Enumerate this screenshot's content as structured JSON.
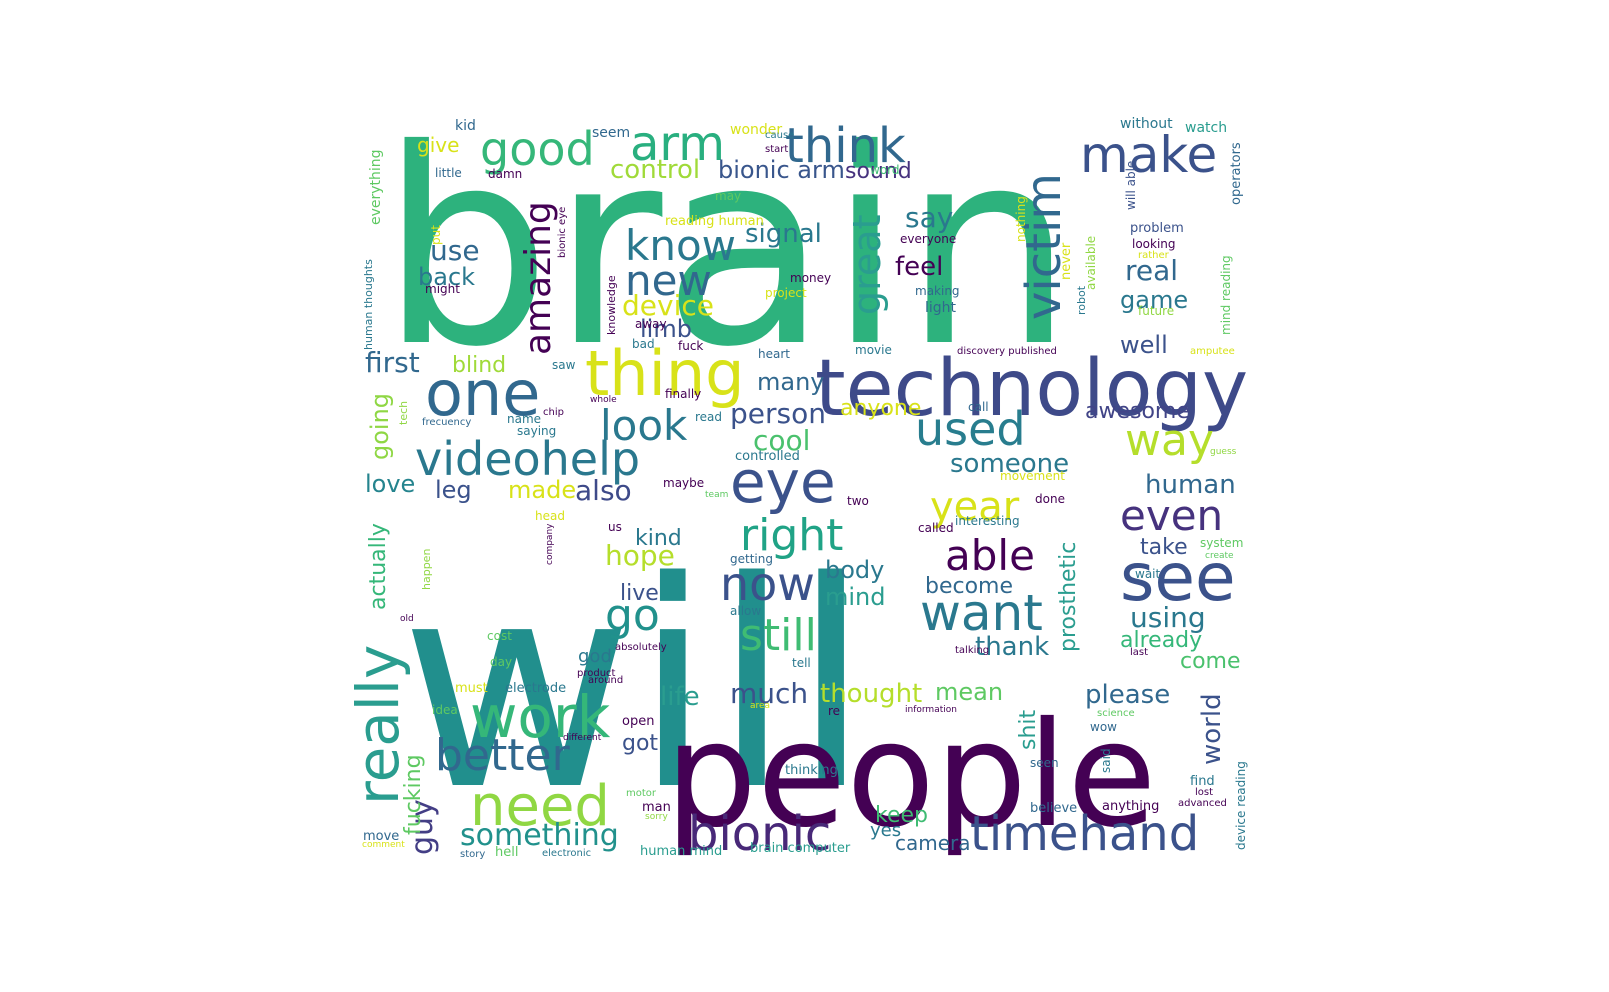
{
  "cloud": {
    "palette": {
      "dark_purple": "#440154",
      "indigo": "#3b528b",
      "blue": "#31688e",
      "teal": "#21918c",
      "green": "#35b779",
      "light_green": "#5ec962",
      "lime": "#90d743",
      "yellow": "#c8e020"
    },
    "words": [
      {
        "text": "brain",
        "color": "#2db27d"
      },
      {
        "text": "will",
        "color": "#218f8d"
      },
      {
        "text": "people",
        "color": "#440154"
      },
      {
        "text": "technology",
        "color": "#3e4a89"
      },
      {
        "text": "one",
        "color": "#31688e"
      },
      {
        "text": "thing",
        "color": "#d8e219"
      },
      {
        "text": "arm",
        "color": "#29af7f"
      },
      {
        "text": "think",
        "color": "#31688e"
      },
      {
        "text": "good",
        "color": "#35b779"
      },
      {
        "text": "make",
        "color": "#3b528b"
      },
      {
        "text": "videohelp",
        "color": "#2a788e"
      },
      {
        "text": "eye",
        "color": "#3b528b"
      },
      {
        "text": "look",
        "color": "#2a788e"
      },
      {
        "text": "used",
        "color": "#287d8e"
      },
      {
        "text": "way",
        "color": "#b5de2b"
      },
      {
        "text": "new",
        "color": "#31688e"
      },
      {
        "text": "know",
        "color": "#2a788e"
      },
      {
        "text": "work",
        "color": "#35b779"
      },
      {
        "text": "need",
        "color": "#90d743"
      },
      {
        "text": "better",
        "color": "#31688e"
      },
      {
        "text": "really",
        "color": "#2a9d8f"
      },
      {
        "text": "bionic",
        "color": "#482878"
      },
      {
        "text": "timehand",
        "color": "#3b528b"
      },
      {
        "text": "want",
        "color": "#2a788e"
      },
      {
        "text": "now",
        "color": "#3b528b"
      },
      {
        "text": "see",
        "color": "#3b528b"
      },
      {
        "text": "able",
        "color": "#440154"
      },
      {
        "text": "right",
        "color": "#20a386"
      },
      {
        "text": "still",
        "color": "#3fbc73"
      },
      {
        "text": "even",
        "color": "#46327e"
      },
      {
        "text": "year",
        "color": "#d8e219"
      },
      {
        "text": "go",
        "color": "#21918c"
      },
      {
        "text": "amazing",
        "color": "#440154"
      },
      {
        "text": "great",
        "color": "#2a9d8f"
      },
      {
        "text": "victim",
        "color": "#31688e"
      },
      {
        "text": "something",
        "color": "#21918c"
      },
      {
        "text": "guy",
        "color": "#433e85"
      },
      {
        "text": "control",
        "color": "#a0da39"
      },
      {
        "text": "bionic arm",
        "color": "#39568c"
      },
      {
        "text": "sound",
        "color": "#46327e"
      },
      {
        "text": "say",
        "color": "#2a788e"
      },
      {
        "text": "feel",
        "color": "#440154"
      },
      {
        "text": "real",
        "color": "#31688e"
      },
      {
        "text": "game",
        "color": "#2a788e"
      },
      {
        "text": "well",
        "color": "#3b528b"
      },
      {
        "text": "person",
        "color": "#3b528b"
      },
      {
        "text": "cool",
        "color": "#4ac16d"
      },
      {
        "text": "someone",
        "color": "#2a788e"
      },
      {
        "text": "human",
        "color": "#31688e"
      },
      {
        "text": "awesome",
        "color": "#414487"
      },
      {
        "text": "device",
        "color": "#d8e219"
      },
      {
        "text": "limb",
        "color": "#3b528b"
      },
      {
        "text": "use",
        "color": "#31688e"
      },
      {
        "text": "back",
        "color": "#2a788e"
      },
      {
        "text": "first",
        "color": "#31688e"
      },
      {
        "text": "blind",
        "color": "#a0da39"
      },
      {
        "text": "going",
        "color": "#8fd744"
      },
      {
        "text": "love",
        "color": "#25848e"
      },
      {
        "text": "leg",
        "color": "#3b528b"
      },
      {
        "text": "made",
        "color": "#d8e219"
      },
      {
        "text": "also",
        "color": "#3e4a89"
      },
      {
        "text": "signal",
        "color": "#2a788e"
      },
      {
        "text": "many",
        "color": "#31688e"
      },
      {
        "text": "anyone",
        "color": "#d8e219"
      },
      {
        "text": "hope",
        "color": "#b5de2b"
      },
      {
        "text": "kind",
        "color": "#2a788e"
      },
      {
        "text": "live",
        "color": "#3b528b"
      },
      {
        "text": "body",
        "color": "#2a788e"
      },
      {
        "text": "mind",
        "color": "#2a9d8f"
      },
      {
        "text": "become",
        "color": "#31688e"
      },
      {
        "text": "take",
        "color": "#3b528b"
      },
      {
        "text": "using",
        "color": "#2a788e"
      },
      {
        "text": "already",
        "color": "#35b779"
      },
      {
        "text": "come",
        "color": "#4ac16d"
      },
      {
        "text": "please",
        "color": "#31688e"
      },
      {
        "text": "world",
        "color": "#3b528b"
      },
      {
        "text": "mean",
        "color": "#5ec962"
      },
      {
        "text": "thought",
        "color": "#b5de2b"
      },
      {
        "text": "much",
        "color": "#3b528b"
      },
      {
        "text": "life",
        "color": "#2a9d8f"
      },
      {
        "text": "got",
        "color": "#3b528b"
      },
      {
        "text": "thank",
        "color": "#2a788e"
      },
      {
        "text": "shit",
        "color": "#2a9d8f"
      },
      {
        "text": "prosthetic",
        "color": "#2a9d8f"
      },
      {
        "text": "actually",
        "color": "#35b779"
      },
      {
        "text": "god",
        "color": "#2a788e"
      },
      {
        "text": "keep",
        "color": "#3fbc73"
      },
      {
        "text": "yes",
        "color": "#2a788e"
      },
      {
        "text": "camera",
        "color": "#31688e"
      },
      {
        "text": "fucking",
        "color": "#5ec962"
      },
      {
        "text": "give",
        "color": "#d8e219"
      },
      {
        "text": "kid",
        "color": "#31688e"
      },
      {
        "text": "seem",
        "color": "#31688e"
      },
      {
        "text": "wonder",
        "color": "#d8e219"
      },
      {
        "text": "without",
        "color": "#2a788e"
      },
      {
        "text": "watch",
        "color": "#2a9d8f"
      },
      {
        "text": "everything",
        "color": "#5ec962"
      },
      {
        "text": "little",
        "color": "#31688e"
      },
      {
        "text": "damn",
        "color": "#440154"
      },
      {
        "text": "word",
        "color": "#3fbc73"
      },
      {
        "text": "start",
        "color": "#440154"
      },
      {
        "text": "cause",
        "color": "#2a788e"
      },
      {
        "text": "will able",
        "color": "#3b528b"
      },
      {
        "text": "operators",
        "color": "#31688e"
      },
      {
        "text": "may",
        "color": "#5ec962"
      },
      {
        "text": "reading human",
        "color": "#d8e219"
      },
      {
        "text": "everyone",
        "color": "#440154"
      },
      {
        "text": "nothing",
        "color": "#d8e219"
      },
      {
        "text": "problem",
        "color": "#3b528b"
      },
      {
        "text": "looking",
        "color": "#440154"
      },
      {
        "text": "rather",
        "color": "#d8e219"
      },
      {
        "text": "bionic eye",
        "color": "#440154"
      },
      {
        "text": "put",
        "color": "#d8e219"
      },
      {
        "text": "human thoughts",
        "color": "#2a788e"
      },
      {
        "text": "might",
        "color": "#440154"
      },
      {
        "text": "knowledge",
        "color": "#440154"
      },
      {
        "text": "money",
        "color": "#440154"
      },
      {
        "text": "project",
        "color": "#d8e219"
      },
      {
        "text": "making",
        "color": "#31688e"
      },
      {
        "text": "light",
        "color": "#31688e"
      },
      {
        "text": "never",
        "color": "#d8e219"
      },
      {
        "text": "available",
        "color": "#90d743"
      },
      {
        "text": "robot",
        "color": "#2a788e"
      },
      {
        "text": "future",
        "color": "#90d743"
      },
      {
        "text": "mind reading",
        "color": "#5ec962"
      },
      {
        "text": "away",
        "color": "#440154"
      },
      {
        "text": "bad",
        "color": "#2a788e"
      },
      {
        "text": "fuck",
        "color": "#440154"
      },
      {
        "text": "heart",
        "color": "#31688e"
      },
      {
        "text": "movie",
        "color": "#2a788e"
      },
      {
        "text": "discovery published",
        "color": "#440154"
      },
      {
        "text": "amputee",
        "color": "#d8e219"
      },
      {
        "text": "saw",
        "color": "#2a788e"
      },
      {
        "text": "finally",
        "color": "#440154"
      },
      {
        "text": "whole",
        "color": "#440154"
      },
      {
        "text": "read",
        "color": "#2a788e"
      },
      {
        "text": "call",
        "color": "#31688e"
      },
      {
        "text": "tech",
        "color": "#90d743"
      },
      {
        "text": "chip",
        "color": "#440154"
      },
      {
        "text": "name",
        "color": "#2a788e"
      },
      {
        "text": "frecuency",
        "color": "#31688e"
      },
      {
        "text": "saying",
        "color": "#2a788e"
      },
      {
        "text": "controlled",
        "color": "#2a788e"
      },
      {
        "text": "guess",
        "color": "#90d743"
      },
      {
        "text": "maybe",
        "color": "#440154"
      },
      {
        "text": "movement",
        "color": "#d8e219"
      },
      {
        "text": "team",
        "color": "#5ec962"
      },
      {
        "text": "called",
        "color": "#440154"
      },
      {
        "text": "two",
        "color": "#440154"
      },
      {
        "text": "done",
        "color": "#440154"
      },
      {
        "text": "head",
        "color": "#d8e219"
      },
      {
        "text": "interesting",
        "color": "#2a788e"
      },
      {
        "text": "us",
        "color": "#440154"
      },
      {
        "text": "company",
        "color": "#440154"
      },
      {
        "text": "getting",
        "color": "#31688e"
      },
      {
        "text": "system",
        "color": "#5ec962"
      },
      {
        "text": "create",
        "color": "#5ec962"
      },
      {
        "text": "happen",
        "color": "#90d743"
      },
      {
        "text": "allow",
        "color": "#2a788e"
      },
      {
        "text": "wait",
        "color": "#2a788e"
      },
      {
        "text": "old",
        "color": "#440154"
      },
      {
        "text": "cost",
        "color": "#5ec962"
      },
      {
        "text": "absolutely",
        "color": "#440154"
      },
      {
        "text": "talking",
        "color": "#440154"
      },
      {
        "text": "last",
        "color": "#440154"
      },
      {
        "text": "day",
        "color": "#5ec962"
      },
      {
        "text": "tell",
        "color": "#2a788e"
      },
      {
        "text": "product",
        "color": "#440154"
      },
      {
        "text": "around",
        "color": "#440154"
      },
      {
        "text": "must",
        "color": "#d8e219"
      },
      {
        "text": "electrode",
        "color": "#2a788e"
      },
      {
        "text": "open",
        "color": "#440154"
      },
      {
        "text": "area",
        "color": "#d8e219"
      },
      {
        "text": "re",
        "color": "#440154"
      },
      {
        "text": "information",
        "color": "#440154"
      },
      {
        "text": "science",
        "color": "#5ec962"
      },
      {
        "text": "idea",
        "color": "#5ec962"
      },
      {
        "text": "different",
        "color": "#440154"
      },
      {
        "text": "wow",
        "color": "#31688e"
      },
      {
        "text": "said",
        "color": "#2a788e"
      },
      {
        "text": "seen",
        "color": "#31688e"
      },
      {
        "text": "find",
        "color": "#2a788e"
      },
      {
        "text": "lost",
        "color": "#440154"
      },
      {
        "text": "thinking",
        "color": "#2a788e"
      },
      {
        "text": "motor",
        "color": "#5ec962"
      },
      {
        "text": "man",
        "color": "#440154"
      },
      {
        "text": "sorry",
        "color": "#90d743"
      },
      {
        "text": "believe",
        "color": "#31688e"
      },
      {
        "text": "anything",
        "color": "#440154"
      },
      {
        "text": "advanced",
        "color": "#440154"
      },
      {
        "text": "device reading",
        "color": "#2a788e"
      },
      {
        "text": "move",
        "color": "#31688e"
      },
      {
        "text": "comment",
        "color": "#d8e219"
      },
      {
        "text": "story",
        "color": "#31688e"
      },
      {
        "text": "hell",
        "color": "#5ec962"
      },
      {
        "text": "electronic",
        "color": "#2a788e"
      },
      {
        "text": "human mind",
        "color": "#2a9d8f"
      },
      {
        "text": "brain computer",
        "color": "#2a9d8f"
      }
    ]
  }
}
